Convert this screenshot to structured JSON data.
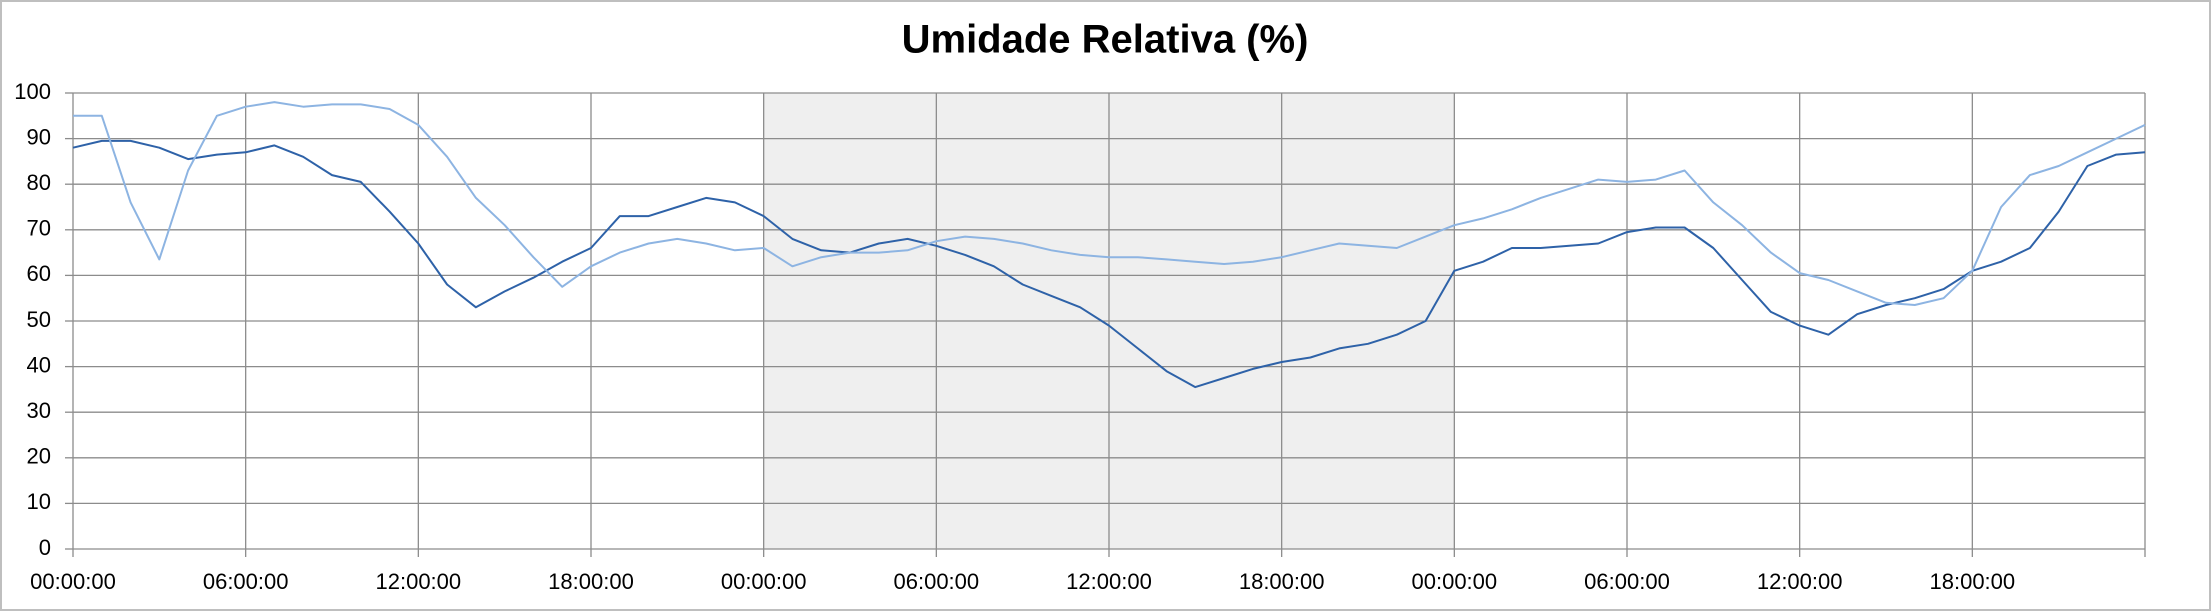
{
  "chart_data": {
    "type": "line",
    "title": "Umidade Relativa (%)",
    "x": [
      0,
      1,
      2,
      3,
      4,
      5,
      6,
      7,
      8,
      9,
      10,
      11,
      12,
      13,
      14,
      15,
      16,
      17,
      18,
      19,
      20,
      21,
      22,
      23,
      24,
      25,
      26,
      27,
      28,
      29,
      30,
      31,
      32,
      33,
      34,
      35,
      36,
      37,
      38,
      39,
      40,
      41,
      42,
      43,
      44,
      45,
      46,
      47,
      48,
      49,
      50,
      51,
      52,
      53,
      54,
      55,
      56,
      57,
      58,
      59,
      60,
      61,
      62,
      63,
      64,
      65,
      66,
      67,
      68,
      69,
      70,
      71,
      72
    ],
    "series": [
      {
        "color": "#2e62a8",
        "values": [
          88,
          89.5,
          89.5,
          88,
          85.5,
          86.5,
          87,
          88.5,
          86,
          82,
          80.5,
          74,
          67,
          58,
          53,
          56.5,
          59.5,
          63,
          66,
          73,
          73,
          75,
          77,
          76,
          73,
          68,
          65.5,
          65,
          67,
          68,
          66.5,
          64.5,
          62,
          58,
          55.5,
          53,
          49,
          44,
          39,
          35.5,
          37.5,
          39.5,
          41,
          42,
          44,
          45,
          47,
          50,
          61,
          63,
          66,
          66,
          66.5,
          67,
          69.5,
          70.5,
          70.5,
          66,
          59,
          52,
          49,
          47,
          51.5,
          53.5,
          55,
          57,
          61,
          63,
          66,
          74,
          84,
          86.5,
          87
        ]
      },
      {
        "color": "#8db4e2",
        "values": [
          95,
          95,
          76,
          63.5,
          83,
          95,
          97,
          98,
          97,
          97.5,
          97.5,
          96.5,
          93,
          86,
          77,
          71,
          64,
          57.5,
          62,
          65,
          67,
          68,
          67,
          65.5,
          66,
          62,
          64,
          65,
          65,
          65.5,
          67.5,
          68.5,
          68,
          67,
          65.5,
          64.5,
          64,
          64,
          63.5,
          63,
          62.5,
          63,
          64,
          65.5,
          67,
          66.5,
          66,
          68.5,
          71,
          72.5,
          74.5,
          77,
          79,
          81,
          80.5,
          81,
          83,
          76,
          71,
          65,
          60.5,
          59,
          56.5,
          54,
          53.5,
          55,
          61,
          75,
          82,
          84,
          87,
          90,
          93
        ]
      }
    ],
    "xlim": [
      0,
      72
    ],
    "xticks": [
      {
        "value": 0,
        "label": "00:00:00"
      },
      {
        "value": 6,
        "label": "06:00:00"
      },
      {
        "value": 12,
        "label": "12:00:00"
      },
      {
        "value": 18,
        "label": "18:00:00"
      },
      {
        "value": 24,
        "label": "00:00:00"
      },
      {
        "value": 30,
        "label": "06:00:00"
      },
      {
        "value": 36,
        "label": "12:00:00"
      },
      {
        "value": 42,
        "label": "18:00:00"
      },
      {
        "value": 48,
        "label": "00:00:00"
      },
      {
        "value": 54,
        "label": "06:00:00"
      },
      {
        "value": 60,
        "label": "12:00:00"
      },
      {
        "value": 66,
        "label": "18:00:00"
      },
      {
        "value": 72,
        "label": ""
      }
    ],
    "ylim": [
      0,
      100
    ],
    "yticks": [
      0,
      10,
      20,
      30,
      40,
      50,
      60,
      70,
      80,
      90,
      100
    ],
    "grid": true,
    "shaded_xrange": [
      24,
      48
    ],
    "shade_color": "#efefef"
  }
}
